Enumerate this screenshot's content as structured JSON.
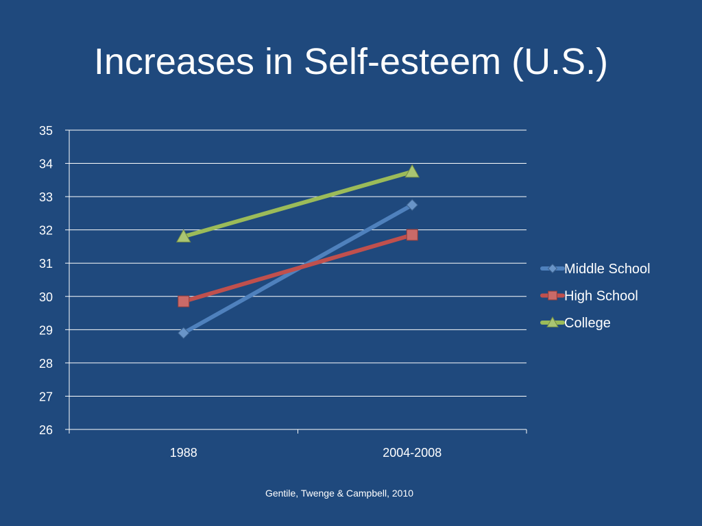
{
  "slide": {
    "title": "Increases in Self-esteem (U.S.)",
    "source": "Gentile, Twenge & Campbell, 2010",
    "background_color": "#1f497d"
  },
  "chart_data": {
    "type": "line",
    "title": "",
    "xlabel": "",
    "ylabel": "",
    "categories": [
      "1988",
      "2004-2008"
    ],
    "ylim": [
      26,
      35
    ],
    "yticks": [
      26,
      27,
      28,
      29,
      30,
      31,
      32,
      33,
      34,
      35
    ],
    "grid": true,
    "legend_position": "right",
    "series": [
      {
        "name": "Middle School",
        "values": [
          28.9,
          32.75
        ],
        "color": "#4f81bd",
        "marker": "diamond"
      },
      {
        "name": "High School",
        "values": [
          29.85,
          31.85
        ],
        "color": "#c0504d",
        "marker": "square"
      },
      {
        "name": "College",
        "values": [
          31.8,
          33.75
        ],
        "color": "#9bbb59",
        "marker": "triangle"
      }
    ]
  }
}
